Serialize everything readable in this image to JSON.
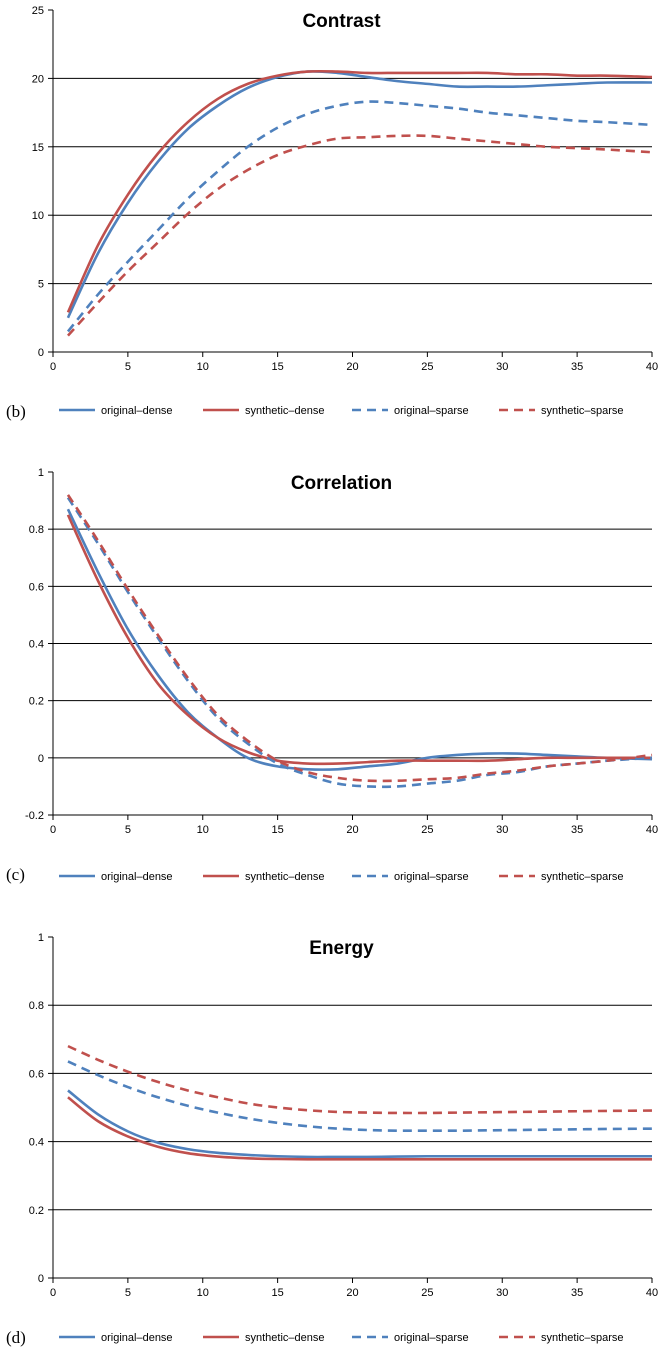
{
  "legend": [
    "original–dense",
    "synthetic–dense",
    "original–sparse",
    "synthetic–sparse"
  ],
  "series_styles": [
    {
      "color": "#4F81BD",
      "dash": "solid"
    },
    {
      "color": "#C0504D",
      "dash": "solid"
    },
    {
      "color": "#4F81BD",
      "dash": "dashed"
    },
    {
      "color": "#C0504D",
      "dash": "dashed"
    }
  ],
  "chart_data": [
    {
      "type": "line",
      "panel_label": "(b)",
      "title": "Contrast",
      "xlabel": "",
      "ylabel": "",
      "xlim": [
        0,
        40
      ],
      "ylim": [
        0,
        25
      ],
      "xticks": [
        0,
        5,
        10,
        15,
        20,
        25,
        30,
        35,
        40
      ],
      "yticks": [
        0,
        5,
        10,
        15,
        20,
        25
      ],
      "grid": "horizontal",
      "legend_position": "bottom",
      "series": [
        {
          "name": "original–dense",
          "x": [
            1,
            3,
            5,
            7,
            9,
            11,
            13,
            15,
            17,
            19,
            21,
            23,
            25,
            27,
            29,
            31,
            33,
            35,
            37,
            40
          ],
          "y": [
            2.5,
            7.2,
            10.9,
            13.9,
            16.3,
            18.0,
            19.3,
            20.1,
            20.5,
            20.4,
            20.1,
            19.8,
            19.6,
            19.4,
            19.4,
            19.4,
            19.5,
            19.6,
            19.7,
            19.7
          ]
        },
        {
          "name": "synthetic–dense",
          "x": [
            1,
            3,
            5,
            7,
            9,
            11,
            13,
            15,
            17,
            19,
            21,
            23,
            25,
            27,
            29,
            31,
            33,
            35,
            37,
            40
          ],
          "y": [
            2.9,
            7.8,
            11.5,
            14.5,
            16.8,
            18.5,
            19.6,
            20.2,
            20.5,
            20.5,
            20.4,
            20.4,
            20.4,
            20.4,
            20.4,
            20.3,
            20.3,
            20.2,
            20.2,
            20.1
          ]
        },
        {
          "name": "original–sparse",
          "x": [
            1,
            3,
            5,
            7,
            9,
            11,
            13,
            15,
            17,
            19,
            21,
            23,
            25,
            27,
            29,
            31,
            33,
            35,
            37,
            40
          ],
          "y": [
            1.5,
            4.2,
            6.6,
            8.9,
            11.2,
            13.2,
            15.0,
            16.4,
            17.4,
            18.0,
            18.3,
            18.2,
            18.0,
            17.8,
            17.5,
            17.3,
            17.1,
            16.9,
            16.8,
            16.6
          ]
        },
        {
          "name": "synthetic–sparse",
          "x": [
            1,
            3,
            5,
            7,
            9,
            11,
            13,
            15,
            17,
            19,
            21,
            23,
            25,
            27,
            29,
            31,
            33,
            35,
            37,
            40
          ],
          "y": [
            1.2,
            3.6,
            5.9,
            8.0,
            10.1,
            11.9,
            13.3,
            14.4,
            15.1,
            15.6,
            15.7,
            15.8,
            15.8,
            15.6,
            15.4,
            15.2,
            15.0,
            14.9,
            14.8,
            14.6
          ]
        }
      ]
    },
    {
      "type": "line",
      "panel_label": "(c)",
      "title": "Correlation",
      "xlabel": "",
      "ylabel": "",
      "xlim": [
        0,
        40
      ],
      "ylim": [
        -0.2,
        1
      ],
      "xticks": [
        0,
        5,
        10,
        15,
        20,
        25,
        30,
        35,
        40
      ],
      "yticks": [
        -0.2,
        0,
        0.2,
        0.4,
        0.6,
        0.8,
        1
      ],
      "grid": "horizontal",
      "legend_position": "bottom",
      "series": [
        {
          "name": "original–dense",
          "x": [
            1,
            3,
            5,
            7,
            9,
            11,
            13,
            15,
            17,
            19,
            21,
            23,
            25,
            27,
            29,
            31,
            33,
            35,
            37,
            40
          ],
          "y": [
            0.87,
            0.65,
            0.45,
            0.29,
            0.16,
            0.07,
            0.0,
            -0.03,
            -0.04,
            -0.04,
            -0.03,
            -0.02,
            0.0,
            0.01,
            0.015,
            0.015,
            0.01,
            0.005,
            0.0,
            -0.005
          ]
        },
        {
          "name": "synthetic–dense",
          "x": [
            1,
            3,
            5,
            7,
            9,
            11,
            13,
            15,
            17,
            19,
            21,
            23,
            25,
            27,
            29,
            31,
            33,
            35,
            37,
            40
          ],
          "y": [
            0.85,
            0.62,
            0.42,
            0.26,
            0.15,
            0.07,
            0.02,
            -0.01,
            -0.02,
            -0.02,
            -0.015,
            -0.01,
            -0.01,
            -0.01,
            -0.01,
            -0.005,
            0.0,
            0.0,
            0.0,
            0.0
          ]
        },
        {
          "name": "original–sparse",
          "x": [
            1,
            3,
            5,
            7,
            9,
            11,
            13,
            15,
            17,
            19,
            21,
            23,
            25,
            27,
            29,
            31,
            33,
            35,
            37,
            40
          ],
          "y": [
            0.91,
            0.75,
            0.58,
            0.42,
            0.27,
            0.14,
            0.05,
            -0.02,
            -0.06,
            -0.09,
            -0.1,
            -0.1,
            -0.09,
            -0.08,
            -0.06,
            -0.05,
            -0.03,
            -0.02,
            -0.01,
            0.0
          ]
        },
        {
          "name": "synthetic–sparse",
          "x": [
            1,
            3,
            5,
            7,
            9,
            11,
            13,
            15,
            17,
            19,
            21,
            23,
            25,
            27,
            29,
            31,
            33,
            35,
            37,
            40
          ],
          "y": [
            0.92,
            0.76,
            0.59,
            0.43,
            0.28,
            0.15,
            0.06,
            -0.01,
            -0.05,
            -0.07,
            -0.08,
            -0.08,
            -0.075,
            -0.07,
            -0.055,
            -0.045,
            -0.03,
            -0.02,
            -0.01,
            0.01
          ]
        }
      ]
    },
    {
      "type": "line",
      "panel_label": "(d)",
      "title": "Energy",
      "xlabel": "",
      "ylabel": "",
      "xlim": [
        0,
        40
      ],
      "ylim": [
        0,
        1
      ],
      "xticks": [
        0,
        5,
        10,
        15,
        20,
        25,
        30,
        35,
        40
      ],
      "yticks": [
        0,
        0.2,
        0.4,
        0.6,
        0.8,
        1
      ],
      "grid": "horizontal",
      "legend_position": "bottom",
      "series": [
        {
          "name": "original–dense",
          "x": [
            1,
            3,
            5,
            7,
            9,
            11,
            13,
            15,
            17,
            19,
            21,
            23,
            25,
            27,
            29,
            31,
            33,
            35,
            37,
            40
          ],
          "y": [
            0.55,
            0.48,
            0.43,
            0.397,
            0.378,
            0.367,
            0.361,
            0.357,
            0.355,
            0.355,
            0.355,
            0.356,
            0.357,
            0.357,
            0.357,
            0.357,
            0.357,
            0.357,
            0.357,
            0.357
          ]
        },
        {
          "name": "synthetic–dense",
          "x": [
            1,
            3,
            5,
            7,
            9,
            11,
            13,
            15,
            17,
            19,
            21,
            23,
            25,
            27,
            29,
            31,
            33,
            35,
            37,
            40
          ],
          "y": [
            0.53,
            0.46,
            0.415,
            0.385,
            0.366,
            0.356,
            0.351,
            0.349,
            0.348,
            0.348,
            0.348,
            0.348,
            0.348,
            0.348,
            0.348,
            0.348,
            0.348,
            0.348,
            0.348,
            0.348
          ]
        },
        {
          "name": "original–sparse",
          "x": [
            1,
            3,
            5,
            7,
            9,
            11,
            13,
            15,
            17,
            19,
            21,
            23,
            25,
            27,
            29,
            31,
            33,
            35,
            37,
            40
          ],
          "y": [
            0.635,
            0.595,
            0.56,
            0.53,
            0.505,
            0.485,
            0.468,
            0.455,
            0.445,
            0.438,
            0.434,
            0.432,
            0.432,
            0.432,
            0.433,
            0.434,
            0.435,
            0.436,
            0.437,
            0.438
          ]
        },
        {
          "name": "synthetic–sparse",
          "x": [
            1,
            3,
            5,
            7,
            9,
            11,
            13,
            15,
            17,
            19,
            21,
            23,
            25,
            27,
            29,
            31,
            33,
            35,
            37,
            40
          ],
          "y": [
            0.68,
            0.64,
            0.605,
            0.575,
            0.55,
            0.53,
            0.512,
            0.5,
            0.492,
            0.487,
            0.485,
            0.484,
            0.484,
            0.485,
            0.486,
            0.487,
            0.488,
            0.489,
            0.49,
            0.491
          ]
        }
      ]
    }
  ]
}
